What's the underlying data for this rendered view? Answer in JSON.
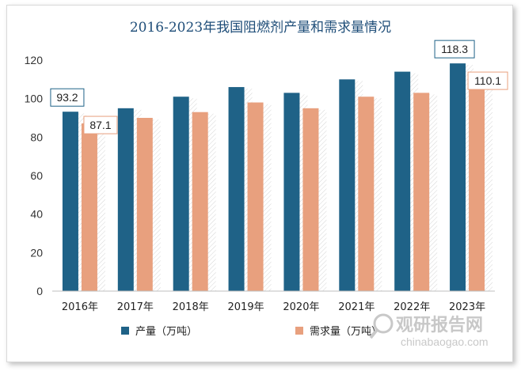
{
  "colors": {
    "production": "#1f6287",
    "demand": "#e8a07e",
    "title": "#1f4e79",
    "axis": "#333333"
  },
  "watermark": {
    "icon": "magnifier-logo-icon",
    "text_cn": "观研报告网",
    "text_en": "chinabaogao.com"
  },
  "chart_data": {
    "type": "bar",
    "title": "2016-2023年我国阻燃剂产量和需求量情况",
    "xlabel": "",
    "ylabel": "",
    "ylim": [
      0,
      120
    ],
    "yticks": [
      "0",
      "20",
      "40",
      "60",
      "80",
      "100",
      "120"
    ],
    "grid": false,
    "legend_position": "bottom-left",
    "categories": [
      "2016年",
      "2017年",
      "2018年",
      "2019年",
      "2020年",
      "2021年",
      "2022年",
      "2023年"
    ],
    "series": [
      {
        "name": "产量（万吨）",
        "values": [
          93.2,
          95,
          101,
          106,
          103,
          110,
          114,
          118.3
        ]
      },
      {
        "name": "需求量（万吨）",
        "values": [
          87.1,
          90,
          93,
          98,
          95,
          101,
          103,
          110.1
        ]
      }
    ],
    "data_labels": [
      {
        "text": "93.2",
        "series": 0,
        "index": 0
      },
      {
        "text": "87.1",
        "series": 1,
        "index": 0
      },
      {
        "text": "118.3",
        "series": 0,
        "index": 7
      },
      {
        "text": "110.1",
        "series": 1,
        "index": 7
      }
    ]
  }
}
